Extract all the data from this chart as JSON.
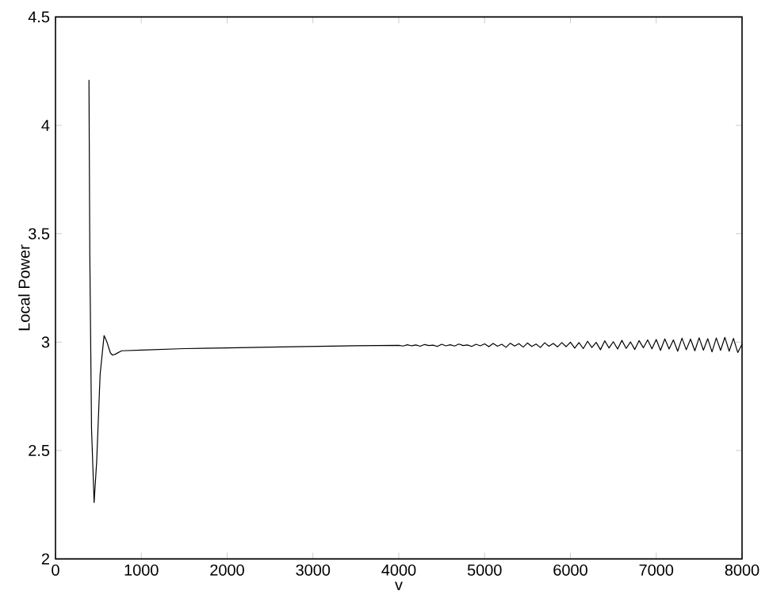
{
  "chart_data": {
    "type": "line",
    "xlabel": "v",
    "ylabel": "Local Power",
    "xlim": [
      0,
      8000
    ],
    "ylim": [
      2,
      4.5
    ],
    "xticks": [
      0,
      1000,
      2000,
      3000,
      4000,
      5000,
      6000,
      7000,
      8000
    ],
    "yticks": [
      2,
      2.5,
      3,
      3.5,
      4,
      4.5
    ],
    "marker": "none",
    "line_style": "solid",
    "series": [
      {
        "color": "#000000",
        "x": [
          390,
          400,
          420,
          450,
          480,
          520,
          566,
          600,
          640,
          665,
          700,
          770,
          1000,
          1500,
          2000,
          2500,
          3000,
          3500,
          4000,
          4050,
          4100,
          4150,
          4200,
          4250,
          4300,
          4350,
          4400,
          4450,
          4500,
          4550,
          4600,
          4650,
          4700,
          4750,
          4800,
          4850,
          4900,
          4950,
          5000,
          5050,
          5100,
          5150,
          5200,
          5250,
          5300,
          5350,
          5400,
          5450,
          5500,
          5550,
          5600,
          5650,
          5700,
          5750,
          5800,
          5850,
          5900,
          5950,
          6000,
          6050,
          6100,
          6150,
          6200,
          6250,
          6300,
          6350,
          6400,
          6450,
          6500,
          6550,
          6600,
          6650,
          6700,
          6750,
          6800,
          6850,
          6900,
          6950,
          7000,
          7050,
          7100,
          7150,
          7200,
          7250,
          7300,
          7350,
          7400,
          7450,
          7500,
          7550,
          7600,
          7650,
          7700,
          7750,
          7800,
          7850,
          7900,
          7950,
          8000
        ],
        "values": [
          4.21,
          3.4,
          2.6,
          2.26,
          2.45,
          2.85,
          3.03,
          3.0,
          2.95,
          2.94,
          2.945,
          2.96,
          2.963,
          2.97,
          2.973,
          2.977,
          2.98,
          2.983,
          2.985,
          2.982,
          2.988,
          2.983,
          2.987,
          2.981,
          2.989,
          2.984,
          2.986,
          2.98,
          2.99,
          2.983,
          2.988,
          2.982,
          2.991,
          2.984,
          2.987,
          2.98,
          2.99,
          2.983,
          2.992,
          2.979,
          2.994,
          2.981,
          2.99,
          2.976,
          2.995,
          2.982,
          2.993,
          2.977,
          2.996,
          2.98,
          2.991,
          2.975,
          2.997,
          2.981,
          2.994,
          2.978,
          2.998,
          2.979,
          3.0,
          2.972,
          2.998,
          2.97,
          3.004,
          2.975,
          2.999,
          2.965,
          3.006,
          2.973,
          3.002,
          2.968,
          3.008,
          2.971,
          3.001,
          2.966,
          3.007,
          2.974,
          3.01,
          2.969,
          3.012,
          2.962,
          3.015,
          2.968,
          3.01,
          2.958,
          3.018,
          2.965,
          3.014,
          2.96,
          3.02,
          2.963,
          3.016,
          2.955,
          3.019,
          2.962,
          3.022,
          2.958,
          3.017,
          2.952,
          2.99
        ]
      }
    ]
  }
}
